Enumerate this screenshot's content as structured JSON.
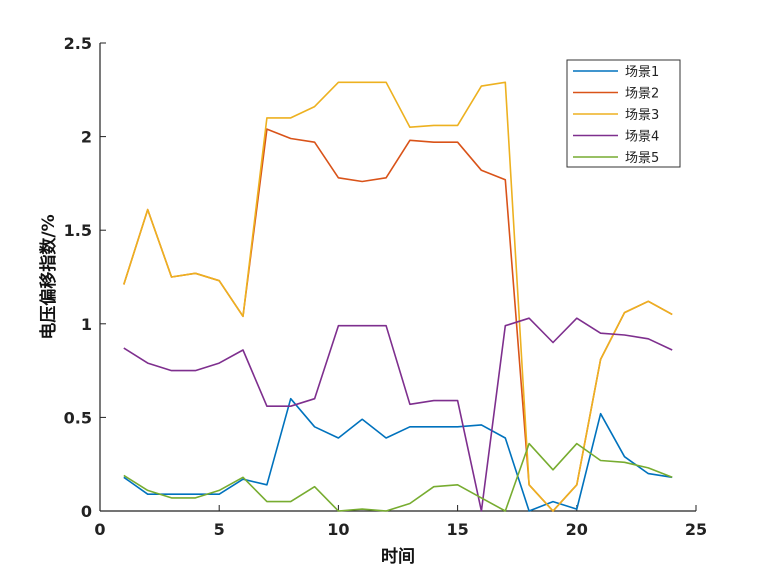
{
  "chart_data": {
    "type": "line",
    "title": "",
    "xlabel": "时间",
    "ylabel": "电压偏移指数/%",
    "xlim": [
      0,
      25
    ],
    "ylim": [
      0,
      2.5
    ],
    "xticks": [
      0,
      5,
      10,
      15,
      20,
      25
    ],
    "yticks": [
      0,
      0.5,
      1,
      1.5,
      2,
      2.5
    ],
    "xtick_labels": [
      "0",
      "5",
      "10",
      "15",
      "20",
      "25"
    ],
    "ytick_labels": [
      "0",
      "0.5",
      "1",
      "1.5",
      "2",
      "2.5"
    ],
    "grid": false,
    "legend_position": "top-right",
    "x": [
      1,
      2,
      3,
      4,
      5,
      6,
      7,
      8,
      9,
      10,
      11,
      12,
      13,
      14,
      15,
      16,
      17,
      18,
      19,
      20,
      21,
      22,
      23,
      24
    ],
    "series": [
      {
        "name": "场景1",
        "color": "#0072BD",
        "values": [
          0.18,
          0.09,
          0.09,
          0.09,
          0.09,
          0.17,
          0.14,
          0.6,
          0.45,
          0.39,
          0.49,
          0.39,
          0.45,
          0.45,
          0.45,
          0.46,
          0.39,
          0.0,
          0.05,
          0.01,
          0.52,
          0.29,
          0.2,
          0.18
        ]
      },
      {
        "name": "场景2",
        "color": "#D95319",
        "values": [
          1.21,
          1.61,
          1.25,
          1.27,
          1.23,
          1.04,
          2.04,
          1.99,
          1.97,
          1.78,
          1.76,
          1.78,
          1.98,
          1.97,
          1.97,
          1.82,
          1.77,
          0.14,
          0.0,
          0.14,
          0.81,
          1.06,
          1.12,
          1.05
        ]
      },
      {
        "name": "场景3",
        "color": "#EDB120",
        "values": [
          1.21,
          1.61,
          1.25,
          1.27,
          1.23,
          1.04,
          2.1,
          2.1,
          2.16,
          2.29,
          2.29,
          2.29,
          2.05,
          2.06,
          2.06,
          2.27,
          2.29,
          0.14,
          0.0,
          0.14,
          0.81,
          1.06,
          1.12,
          1.05
        ]
      },
      {
        "name": "场景4",
        "color": "#7E2F8E",
        "values": [
          0.87,
          0.79,
          0.75,
          0.75,
          0.79,
          0.86,
          0.56,
          0.56,
          0.6,
          0.99,
          0.99,
          0.99,
          0.57,
          0.59,
          0.59,
          0.0,
          0.99,
          1.03,
          0.9,
          1.03,
          0.95,
          0.94,
          0.92,
          0.86
        ]
      },
      {
        "name": "场景5",
        "color": "#77AC30",
        "values": [
          0.19,
          0.11,
          0.07,
          0.07,
          0.11,
          0.18,
          0.05,
          0.05,
          0.13,
          0.0,
          0.01,
          0.0,
          0.04,
          0.13,
          0.14,
          0.07,
          0.0,
          0.36,
          0.22,
          0.36,
          0.27,
          0.26,
          0.23,
          0.18
        ]
      }
    ]
  }
}
